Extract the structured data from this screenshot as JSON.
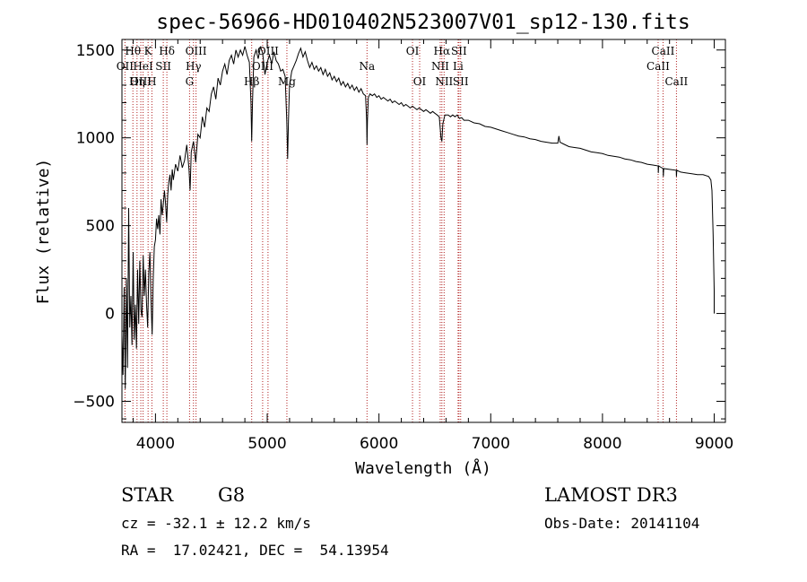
{
  "chart_data": {
    "type": "line",
    "title": "spec-56966-HD010402N523007V01_sp12-130.fits",
    "xlabel": "Wavelength (Å)",
    "ylabel": "Flux (relative)",
    "xlim": [
      3700,
      9100
    ],
    "ylim": [
      -620,
      1560
    ],
    "xticks": [
      4000,
      5000,
      6000,
      7000,
      8000,
      9000
    ],
    "yticks": [
      -500,
      0,
      500,
      1000,
      1500
    ],
    "x_minor_step": 200,
    "y_minor_step": 100,
    "series": [
      {
        "name": "flux",
        "points": [
          [
            3700,
            -120
          ],
          [
            3710,
            -350
          ],
          [
            3720,
            150
          ],
          [
            3730,
            -430
          ],
          [
            3740,
            200
          ],
          [
            3750,
            -310
          ],
          [
            3760,
            600
          ],
          [
            3770,
            -80
          ],
          [
            3780,
            100
          ],
          [
            3790,
            -180
          ],
          [
            3800,
            350
          ],
          [
            3810,
            -150
          ],
          [
            3820,
            50
          ],
          [
            3830,
            -200
          ],
          [
            3840,
            250
          ],
          [
            3850,
            -60
          ],
          [
            3860,
            300
          ],
          [
            3870,
            20
          ],
          [
            3880,
            -20
          ],
          [
            3890,
            330
          ],
          [
            3900,
            100
          ],
          [
            3910,
            250
          ],
          [
            3920,
            60
          ],
          [
            3930,
            -80
          ],
          [
            3940,
            230
          ],
          [
            3950,
            350
          ],
          [
            3960,
            80
          ],
          [
            3970,
            -120
          ],
          [
            3980,
            200
          ],
          [
            3990,
            380
          ],
          [
            4000,
            420
          ],
          [
            4010,
            540
          ],
          [
            4020,
            480
          ],
          [
            4030,
            560
          ],
          [
            4040,
            450
          ],
          [
            4050,
            650
          ],
          [
            4060,
            560
          ],
          [
            4070,
            620
          ],
          [
            4080,
            700
          ],
          [
            4090,
            630
          ],
          [
            4100,
            520
          ],
          [
            4110,
            680
          ],
          [
            4120,
            750
          ],
          [
            4130,
            790
          ],
          [
            4140,
            700
          ],
          [
            4150,
            820
          ],
          [
            4160,
            760
          ],
          [
            4180,
            850
          ],
          [
            4200,
            810
          ],
          [
            4220,
            900
          ],
          [
            4240,
            830
          ],
          [
            4260,
            870
          ],
          [
            4280,
            960
          ],
          [
            4300,
            820
          ],
          [
            4310,
            700
          ],
          [
            4320,
            920
          ],
          [
            4340,
            980
          ],
          [
            4360,
            860
          ],
          [
            4380,
            1020
          ],
          [
            4400,
            1000
          ],
          [
            4420,
            1120
          ],
          [
            4440,
            1060
          ],
          [
            4460,
            1170
          ],
          [
            4480,
            1150
          ],
          [
            4500,
            1250
          ],
          [
            4520,
            1290
          ],
          [
            4540,
            1220
          ],
          [
            4560,
            1340
          ],
          [
            4580,
            1300
          ],
          [
            4600,
            1380
          ],
          [
            4620,
            1420
          ],
          [
            4640,
            1360
          ],
          [
            4660,
            1440
          ],
          [
            4680,
            1470
          ],
          [
            4700,
            1420
          ],
          [
            4720,
            1500
          ],
          [
            4740,
            1460
          ],
          [
            4760,
            1500
          ],
          [
            4780,
            1470
          ],
          [
            4800,
            1520
          ],
          [
            4820,
            1470
          ],
          [
            4840,
            1430
          ],
          [
            4855,
            1200
          ],
          [
            4861,
            980
          ],
          [
            4868,
            1200
          ],
          [
            4880,
            1460
          ],
          [
            4900,
            1500
          ],
          [
            4920,
            1450
          ],
          [
            4940,
            1520
          ],
          [
            4960,
            1480
          ],
          [
            4980,
            1360
          ],
          [
            5000,
            1430
          ],
          [
            5020,
            1470
          ],
          [
            5040,
            1420
          ],
          [
            5060,
            1490
          ],
          [
            5080,
            1440
          ],
          [
            5100,
            1420
          ],
          [
            5120,
            1380
          ],
          [
            5140,
            1390
          ],
          [
            5160,
            1350
          ],
          [
            5175,
            1100
          ],
          [
            5183,
            880
          ],
          [
            5190,
            1100
          ],
          [
            5200,
            1300
          ],
          [
            5220,
            1380
          ],
          [
            5240,
            1410
          ],
          [
            5260,
            1440
          ],
          [
            5280,
            1480
          ],
          [
            5300,
            1510
          ],
          [
            5320,
            1460
          ],
          [
            5340,
            1490
          ],
          [
            5360,
            1440
          ],
          [
            5380,
            1400
          ],
          [
            5400,
            1430
          ],
          [
            5420,
            1390
          ],
          [
            5440,
            1410
          ],
          [
            5460,
            1380
          ],
          [
            5480,
            1400
          ],
          [
            5500,
            1360
          ],
          [
            5520,
            1390
          ],
          [
            5540,
            1350
          ],
          [
            5560,
            1370
          ],
          [
            5580,
            1330
          ],
          [
            5600,
            1350
          ],
          [
            5620,
            1320
          ],
          [
            5640,
            1340
          ],
          [
            5660,
            1300
          ],
          [
            5680,
            1320
          ],
          [
            5700,
            1290
          ],
          [
            5720,
            1310
          ],
          [
            5740,
            1280
          ],
          [
            5760,
            1300
          ],
          [
            5780,
            1270
          ],
          [
            5800,
            1290
          ],
          [
            5820,
            1260
          ],
          [
            5840,
            1280
          ],
          [
            5860,
            1250
          ],
          [
            5880,
            1240
          ],
          [
            5890,
            1100
          ],
          [
            5893,
            960
          ],
          [
            5897,
            1100
          ],
          [
            5905,
            1230
          ],
          [
            5920,
            1250
          ],
          [
            5940,
            1240
          ],
          [
            5960,
            1250
          ],
          [
            5980,
            1230
          ],
          [
            6000,
            1240
          ],
          [
            6020,
            1220
          ],
          [
            6040,
            1230
          ],
          [
            6060,
            1220
          ],
          [
            6080,
            1210
          ],
          [
            6100,
            1220
          ],
          [
            6120,
            1200
          ],
          [
            6140,
            1210
          ],
          [
            6160,
            1200
          ],
          [
            6180,
            1190
          ],
          [
            6200,
            1200
          ],
          [
            6220,
            1180
          ],
          [
            6240,
            1190
          ],
          [
            6260,
            1180
          ],
          [
            6280,
            1170
          ],
          [
            6300,
            1180
          ],
          [
            6320,
            1170
          ],
          [
            6340,
            1160
          ],
          [
            6360,
            1170
          ],
          [
            6380,
            1160
          ],
          [
            6400,
            1150
          ],
          [
            6420,
            1160
          ],
          [
            6440,
            1150
          ],
          [
            6460,
            1140
          ],
          [
            6480,
            1150
          ],
          [
            6500,
            1140
          ],
          [
            6520,
            1130
          ],
          [
            6540,
            1120
          ],
          [
            6555,
            1000
          ],
          [
            6563,
            980
          ],
          [
            6572,
            1080
          ],
          [
            6590,
            1130
          ],
          [
            6620,
            1130
          ],
          [
            6640,
            1120
          ],
          [
            6660,
            1130
          ],
          [
            6680,
            1120
          ],
          [
            6700,
            1130
          ],
          [
            6720,
            1110
          ],
          [
            6740,
            1115
          ],
          [
            6760,
            1100
          ],
          [
            6800,
            1100
          ],
          [
            6850,
            1085
          ],
          [
            6900,
            1080
          ],
          [
            6950,
            1065
          ],
          [
            7000,
            1060
          ],
          [
            7050,
            1050
          ],
          [
            7100,
            1040
          ],
          [
            7150,
            1030
          ],
          [
            7200,
            1020
          ],
          [
            7250,
            1010
          ],
          [
            7300,
            1005
          ],
          [
            7350,
            995
          ],
          [
            7400,
            990
          ],
          [
            7450,
            980
          ],
          [
            7500,
            975
          ],
          [
            7550,
            970
          ],
          [
            7600,
            970
          ],
          [
            7610,
            1010
          ],
          [
            7620,
            975
          ],
          [
            7650,
            965
          ],
          [
            7700,
            950
          ],
          [
            7750,
            945
          ],
          [
            7800,
            940
          ],
          [
            7850,
            930
          ],
          [
            7900,
            920
          ],
          [
            7950,
            915
          ],
          [
            8000,
            910
          ],
          [
            8050,
            900
          ],
          [
            8100,
            895
          ],
          [
            8150,
            890
          ],
          [
            8200,
            880
          ],
          [
            8250,
            875
          ],
          [
            8300,
            865
          ],
          [
            8350,
            860
          ],
          [
            8400,
            850
          ],
          [
            8450,
            845
          ],
          [
            8498,
            840
          ],
          [
            8500,
            800
          ],
          [
            8502,
            840
          ],
          [
            8542,
            825
          ],
          [
            8545,
            780
          ],
          [
            8548,
            825
          ],
          [
            8600,
            820
          ],
          [
            8660,
            815
          ],
          [
            8662,
            780
          ],
          [
            8665,
            815
          ],
          [
            8700,
            805
          ],
          [
            8750,
            800
          ],
          [
            8800,
            795
          ],
          [
            8850,
            790
          ],
          [
            8900,
            790
          ],
          [
            8950,
            780
          ],
          [
            8970,
            760
          ],
          [
            8980,
            700
          ],
          [
            8990,
            450
          ],
          [
            9000,
            130
          ],
          [
            9000,
            0
          ]
        ]
      }
    ],
    "lines": [
      {
        "label": "Hθ",
        "wl": 3798,
        "row": 1
      },
      {
        "label": "OII",
        "wl": 3727,
        "row": 2
      },
      {
        "label": "OIII",
        "wl": 3869,
        "row": 3
      },
      {
        "label": "K",
        "wl": 3934,
        "row": 1
      },
      {
        "label": "HeI",
        "wl": 3889,
        "row": 2
      },
      {
        "label": "Hη",
        "wl": 3835,
        "row": 3
      },
      {
        "label": "SII",
        "wl": 4070,
        "row": 2
      },
      {
        "label": "H",
        "wl": 3968,
        "row": 3
      },
      {
        "label": "Hδ",
        "wl": 4102,
        "row": 1
      },
      {
        "label": "OIII",
        "wl": 4363,
        "row": 1
      },
      {
        "label": "Hγ",
        "wl": 4340,
        "row": 2
      },
      {
        "label": "G",
        "wl": 4305,
        "row": 3
      },
      {
        "label": "OIII",
        "wl": 5007,
        "row": 1
      },
      {
        "label": "OIII",
        "wl": 4959,
        "row": 2
      },
      {
        "label": "Hβ",
        "wl": 4861,
        "row": 3
      },
      {
        "label": "Mg",
        "wl": 5176,
        "row": 3
      },
      {
        "label": "Na",
        "wl": 5893,
        "row": 2
      },
      {
        "label": "OI",
        "wl": 6300,
        "row": 1
      },
      {
        "label": "OI",
        "wl": 6364,
        "row": 3
      },
      {
        "label": "Hα",
        "wl": 6563,
        "row": 1
      },
      {
        "label": "NII",
        "wl": 6548,
        "row": 2
      },
      {
        "label": "NII",
        "wl": 6583,
        "row": 3
      },
      {
        "label": "SII",
        "wl": 6716,
        "row": 1
      },
      {
        "label": "Li",
        "wl": 6708,
        "row": 2
      },
      {
        "label": "SII",
        "wl": 6731,
        "row": 3
      },
      {
        "label": "CaII",
        "wl": 8542,
        "row": 1
      },
      {
        "label": "CaII",
        "wl": 8498,
        "row": 2
      },
      {
        "label": "CaII",
        "wl": 8662,
        "row": 3
      }
    ]
  },
  "info": {
    "object_class": "STAR",
    "subclass": "G8",
    "survey": "LAMOST DR3",
    "cz": "cz = -32.1 ± 12.2 km/s",
    "obs_date": "Obs-Date: 20141104",
    "coords": "RA =  17.02421, DEC =  54.13954"
  },
  "colors": {
    "spectrum": "#000000",
    "line_marker": "#b22222",
    "axes": "#000000",
    "background": "#ffffff"
  }
}
